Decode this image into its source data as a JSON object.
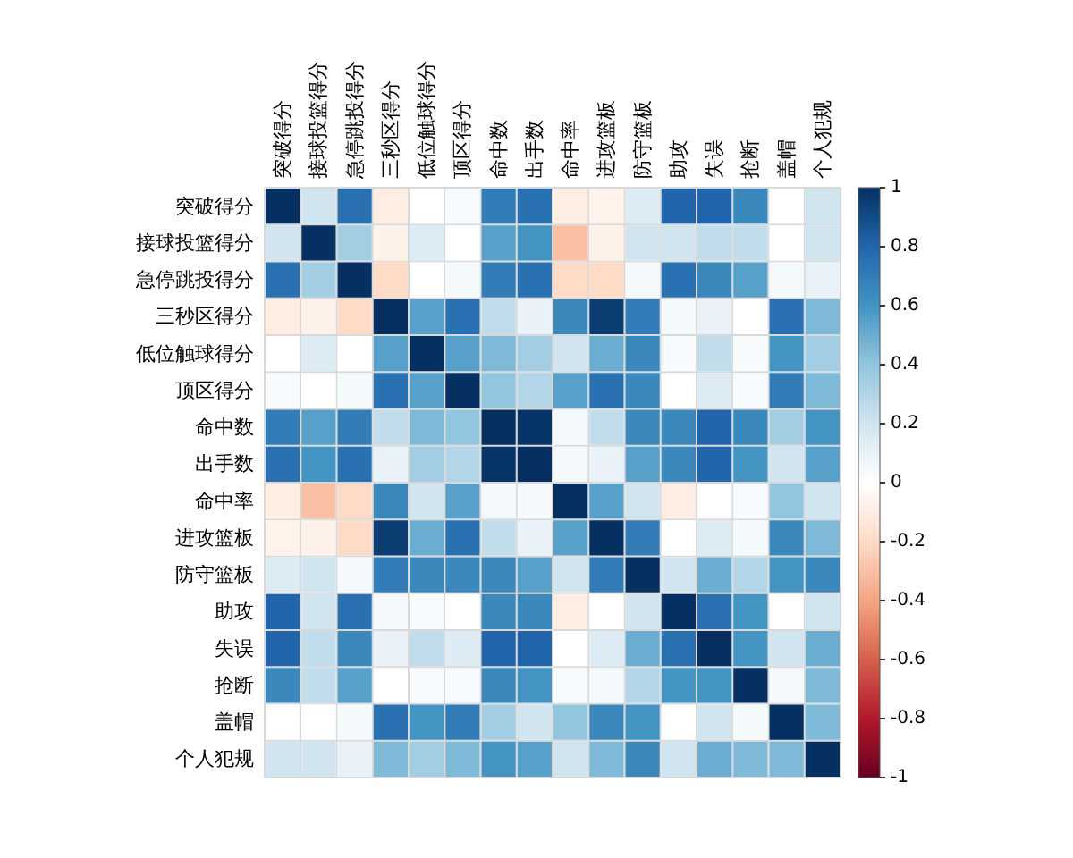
{
  "chart_data": {
    "type": "heatmap",
    "categories": [
      "突破得分",
      "接球投篮得分",
      "急停跳投得分",
      "三秒区得分",
      "低位触球得分",
      "顶区得分",
      "命中数",
      "出手数",
      "命中率",
      "进攻篮板",
      "防守篮板",
      "助攻",
      "失误",
      "抢断",
      "盖帽",
      "个人犯规"
    ],
    "y_categories": [
      "突破得分",
      "接球投篮得分",
      "急停跳投得分",
      "三秒区得分",
      "低位触球得分",
      "顶区得分",
      "命中数",
      "出手数",
      "命中率",
      "进攻篮板",
      "防守篮板",
      "助攻",
      "失误",
      "抢断",
      "盖帽",
      "个人犯规"
    ],
    "cells": [
      [
        1,
        0.2,
        0.75,
        -0.1,
        0,
        0.03,
        0.7,
        0.75,
        -0.1,
        -0.07,
        0.15,
        0.8,
        0.8,
        0.65,
        0,
        0.2
      ],
      [
        0.2,
        1,
        0.35,
        -0.08,
        0.15,
        0,
        0.55,
        0.6,
        -0.3,
        -0.08,
        0.2,
        0.2,
        0.25,
        0.25,
        0,
        0.2
      ],
      [
        0.75,
        0.35,
        1,
        -0.2,
        0,
        0.05,
        0.7,
        0.75,
        -0.2,
        -0.2,
        0.05,
        0.75,
        0.65,
        0.55,
        0.05,
        0.1
      ],
      [
        -0.1,
        -0.08,
        -0.2,
        1,
        0.55,
        0.75,
        0.25,
        0.1,
        0.65,
        0.95,
        0.7,
        0.05,
        0.1,
        0,
        0.75,
        0.45
      ],
      [
        0,
        0.15,
        0,
        0.55,
        1,
        0.55,
        0.45,
        0.35,
        0.2,
        0.5,
        0.65,
        0.03,
        0.25,
        0.03,
        0.6,
        0.35
      ],
      [
        0.03,
        0,
        0.05,
        0.75,
        0.55,
        1,
        0.4,
        0.3,
        0.55,
        0.75,
        0.65,
        0,
        0.15,
        0.03,
        0.7,
        0.45
      ],
      [
        0.7,
        0.55,
        0.7,
        0.25,
        0.45,
        0.4,
        1,
        0.98,
        0.05,
        0.25,
        0.65,
        0.65,
        0.8,
        0.65,
        0.35,
        0.6
      ],
      [
        0.75,
        0.6,
        0.75,
        0.1,
        0.35,
        0.3,
        0.98,
        1,
        0.05,
        0.1,
        0.55,
        0.65,
        0.8,
        0.6,
        0.2,
        0.55
      ],
      [
        -0.1,
        -0.3,
        -0.2,
        0.65,
        0.2,
        0.55,
        0.05,
        0.05,
        1,
        0.55,
        0.2,
        -0.1,
        0,
        0.03,
        0.4,
        0.2
      ],
      [
        -0.07,
        -0.08,
        -0.2,
        0.95,
        0.5,
        0.75,
        0.25,
        0.1,
        0.55,
        1,
        0.7,
        0,
        0.15,
        0.05,
        0.65,
        0.45
      ],
      [
        0.15,
        0.2,
        0.05,
        0.7,
        0.65,
        0.65,
        0.65,
        0.55,
        0.2,
        0.7,
        1,
        0.2,
        0.5,
        0.3,
        0.6,
        0.65
      ],
      [
        0.8,
        0.2,
        0.75,
        0.05,
        0.03,
        0,
        0.65,
        0.65,
        -0.1,
        0,
        0.2,
        1,
        0.75,
        0.6,
        0,
        0.2
      ],
      [
        0.8,
        0.25,
        0.65,
        0.1,
        0.25,
        0.15,
        0.8,
        0.8,
        0,
        0.15,
        0.5,
        0.75,
        1,
        0.6,
        0.2,
        0.5
      ],
      [
        0.65,
        0.25,
        0.55,
        0,
        0.03,
        0.03,
        0.65,
        0.6,
        0.03,
        0.05,
        0.3,
        0.6,
        0.6,
        1,
        0.05,
        0.45
      ],
      [
        0,
        0,
        0.05,
        0.75,
        0.6,
        0.7,
        0.35,
        0.2,
        0.4,
        0.65,
        0.6,
        0,
        0.2,
        0.05,
        1,
        0.45
      ],
      [
        0.2,
        0.2,
        0.1,
        0.45,
        0.35,
        0.45,
        0.6,
        0.55,
        0.2,
        0.45,
        0.65,
        0.2,
        0.5,
        0.45,
        0.45,
        1
      ]
    ],
    "clim": [
      -1,
      1
    ],
    "cticks": [
      -1,
      -0.8,
      -0.6,
      -0.4,
      -0.2,
      0,
      0.2,
      0.4,
      0.6,
      0.8,
      1
    ]
  }
}
